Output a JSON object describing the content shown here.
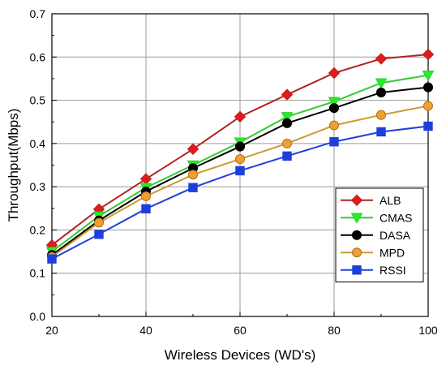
{
  "chart_data": {
    "type": "line",
    "title": "",
    "xlabel": "Wireless Devices (WD's)",
    "ylabel": "Throughput(Mbps)",
    "xlim": [
      20,
      100
    ],
    "ylim": [
      0.0,
      0.7
    ],
    "x_ticks": [
      "20",
      "40",
      "60",
      "80",
      "100"
    ],
    "y_ticks": [
      "0.0",
      "0.1",
      "0.2",
      "0.3",
      "0.4",
      "0.5",
      "0.6",
      "0.7"
    ],
    "grid": true,
    "legend_position": "right",
    "x": [
      20,
      30,
      40,
      50,
      60,
      70,
      80,
      90,
      100
    ],
    "series": [
      {
        "name": "ALB",
        "color": "#b22222",
        "marker": "diamond",
        "marker_color": "#e31a1c",
        "values": [
          0.165,
          0.248,
          0.318,
          0.387,
          0.462,
          0.513,
          0.563,
          0.596,
          0.606
        ]
      },
      {
        "name": "CMAS",
        "color": "#33cc33",
        "marker": "triangle-down",
        "marker_color": "#22ee22",
        "values": [
          0.15,
          0.232,
          0.298,
          0.35,
          0.403,
          0.462,
          0.497,
          0.54,
          0.558
        ]
      },
      {
        "name": "DASA",
        "color": "#000000",
        "marker": "circle",
        "marker_color": "#000000",
        "values": [
          0.142,
          0.222,
          0.289,
          0.343,
          0.393,
          0.447,
          0.482,
          0.518,
          0.53
        ]
      },
      {
        "name": "MPD",
        "color": "#cc9933",
        "marker": "circle",
        "marker_color": "#f0a030",
        "values": [
          0.138,
          0.217,
          0.278,
          0.328,
          0.364,
          0.4,
          0.442,
          0.466,
          0.487
        ]
      },
      {
        "name": "RSSI",
        "color": "#1f3fdd",
        "marker": "square",
        "marker_color": "#1f3fdd",
        "values": [
          0.133,
          0.19,
          0.249,
          0.298,
          0.337,
          0.371,
          0.404,
          0.427,
          0.44
        ]
      }
    ]
  }
}
